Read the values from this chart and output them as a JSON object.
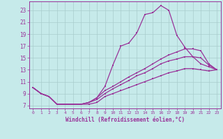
{
  "xlabel": "Windchill (Refroidissement éolien,°C)",
  "bg_color": "#c6eaea",
  "line_color": "#993399",
  "grid_color": "#a8cccc",
  "xlim": [
    -0.5,
    23.5
  ],
  "ylim": [
    6.5,
    24.5
  ],
  "xticks": [
    0,
    1,
    2,
    3,
    4,
    5,
    6,
    7,
    8,
    9,
    10,
    11,
    12,
    13,
    14,
    15,
    16,
    17,
    18,
    19,
    20,
    21,
    22,
    23
  ],
  "yticks": [
    7,
    9,
    11,
    13,
    15,
    17,
    19,
    21,
    23
  ],
  "line1_x": [
    0,
    1,
    2,
    3,
    4,
    5,
    6,
    7,
    8,
    9,
    10,
    11,
    12,
    13,
    14,
    15,
    16,
    17,
    18,
    19,
    20,
    21,
    22,
    23
  ],
  "line1_y": [
    10.0,
    9.0,
    8.5,
    7.2,
    7.2,
    7.2,
    7.2,
    7.5,
    8.3,
    10.2,
    13.8,
    17.0,
    17.5,
    19.2,
    22.3,
    22.6,
    23.8,
    23.0,
    18.8,
    16.8,
    15.2,
    14.0,
    13.5,
    13.0
  ],
  "line2_x": [
    0,
    1,
    2,
    3,
    4,
    5,
    6,
    7,
    8,
    9,
    10,
    11,
    12,
    13,
    14,
    15,
    16,
    17,
    18,
    19,
    20,
    21,
    22,
    23
  ],
  "line2_y": [
    10.0,
    9.0,
    8.5,
    7.2,
    7.2,
    7.2,
    7.2,
    7.5,
    8.3,
    9.5,
    10.2,
    11.0,
    11.8,
    12.5,
    13.2,
    14.0,
    14.8,
    15.5,
    16.0,
    16.5,
    16.5,
    16.2,
    14.0,
    13.0
  ],
  "line3_x": [
    0,
    1,
    2,
    3,
    4,
    5,
    6,
    7,
    8,
    9,
    10,
    11,
    12,
    13,
    14,
    15,
    16,
    17,
    18,
    19,
    20,
    21,
    22,
    23
  ],
  "line3_y": [
    10.0,
    9.0,
    8.5,
    7.2,
    7.2,
    7.2,
    7.2,
    7.5,
    8.0,
    9.0,
    9.8,
    10.5,
    11.2,
    12.0,
    12.5,
    13.2,
    14.0,
    14.5,
    14.8,
    15.2,
    15.2,
    15.0,
    13.8,
    13.0
  ],
  "line4_x": [
    0,
    1,
    2,
    3,
    4,
    5,
    6,
    7,
    8,
    9,
    10,
    11,
    12,
    13,
    14,
    15,
    16,
    17,
    18,
    19,
    20,
    21,
    22,
    23
  ],
  "line4_y": [
    10.0,
    9.0,
    8.5,
    7.2,
    7.2,
    7.2,
    7.2,
    7.2,
    7.5,
    8.5,
    9.0,
    9.5,
    10.0,
    10.5,
    11.0,
    11.5,
    12.0,
    12.5,
    12.8,
    13.2,
    13.2,
    13.0,
    12.8,
    13.0
  ]
}
